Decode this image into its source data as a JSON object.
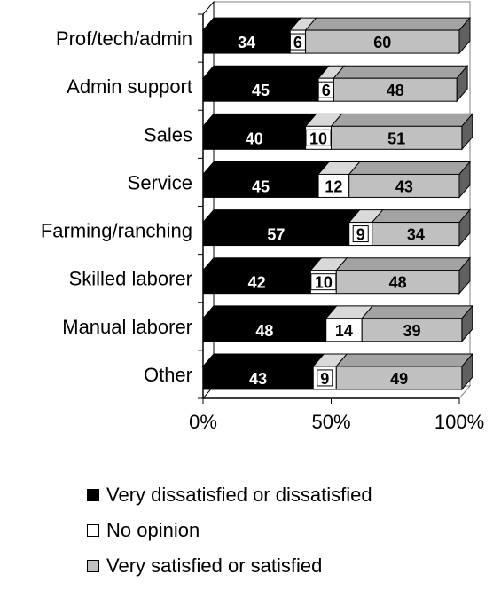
{
  "chart_data": {
    "type": "bar",
    "orientation": "horizontal",
    "stacked": "percent",
    "three_d": true,
    "categories": [
      "Prof/tech/admin",
      "Admin support",
      "Sales",
      "Service",
      "Farming/ranching",
      "Skilled laborer",
      "Manual laborer",
      "Other"
    ],
    "series": [
      {
        "name": "Very dissatisfied or dissatisfied",
        "values": [
          34,
          45,
          40,
          45,
          57,
          42,
          48,
          43
        ],
        "color": "#000000",
        "label_color": "#ffffff"
      },
      {
        "name": "No opinion",
        "values": [
          6,
          6,
          10,
          12,
          9,
          10,
          14,
          9
        ],
        "color": "#ffffff",
        "label_color": "#000000"
      },
      {
        "name": "Very satisfied or satisfied",
        "values": [
          60,
          48,
          51,
          43,
          34,
          48,
          39,
          49
        ],
        "color": "#c0c0c0",
        "label_color": "#000000"
      }
    ],
    "xlim": [
      0,
      100
    ],
    "xticks": [
      "0%",
      "50%",
      "100%"
    ],
    "grid": false,
    "legend_position": "bottom"
  }
}
